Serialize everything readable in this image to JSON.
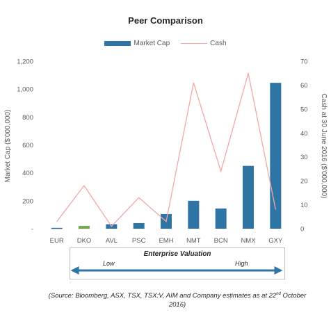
{
  "title": "Peer Comparison",
  "legend": {
    "bar_label": "Market Cap",
    "line_label": "Cash"
  },
  "colors": {
    "bar": "#2e75a6",
    "bar_highlight": "#70ad47",
    "line": "#f4a6a6",
    "arrow": "#2e75a6",
    "axis_text": "#595959"
  },
  "chart_data": {
    "type": "bar",
    "title": "Peer Comparison",
    "categories": [
      "EUR",
      "DKO",
      "AVL",
      "PSC",
      "EMH",
      "NMT",
      "BCN",
      "NMX",
      "GXY"
    ],
    "series": [
      {
        "name": "Market Cap",
        "type": "bar",
        "axis": "left",
        "values": [
          6,
          20,
          32,
          40,
          105,
          200,
          145,
          450,
          1045
        ],
        "highlight_index": 1
      },
      {
        "name": "Cash",
        "type": "line",
        "axis": "right",
        "values": [
          3,
          18,
          1,
          13,
          3,
          61,
          24,
          65,
          8
        ]
      }
    ],
    "ylabel": "Market Cap ($'000,000)",
    "ylim": [
      0,
      1200
    ],
    "yticks": [
      "-",
      "200",
      "400",
      "600",
      "800",
      "1,000",
      "1,200"
    ],
    "y2label": "Cash at 30 June 2016 ($'000,000)",
    "y2lim": [
      0,
      70
    ],
    "y2ticks": [
      "0",
      "10",
      "20",
      "30",
      "40",
      "50",
      "60",
      "70"
    ],
    "grid": false,
    "legend_position": "top"
  },
  "enterprise_valuation": {
    "title": "Enterprise Valuation",
    "low": "Low",
    "high": "High"
  },
  "source": {
    "text_before": "(Source: Bloomberg, ASX, TSX, TSX:V, AIM and Company estimates as at 22",
    "sup": "nd",
    "text_after": " October 2016)"
  }
}
